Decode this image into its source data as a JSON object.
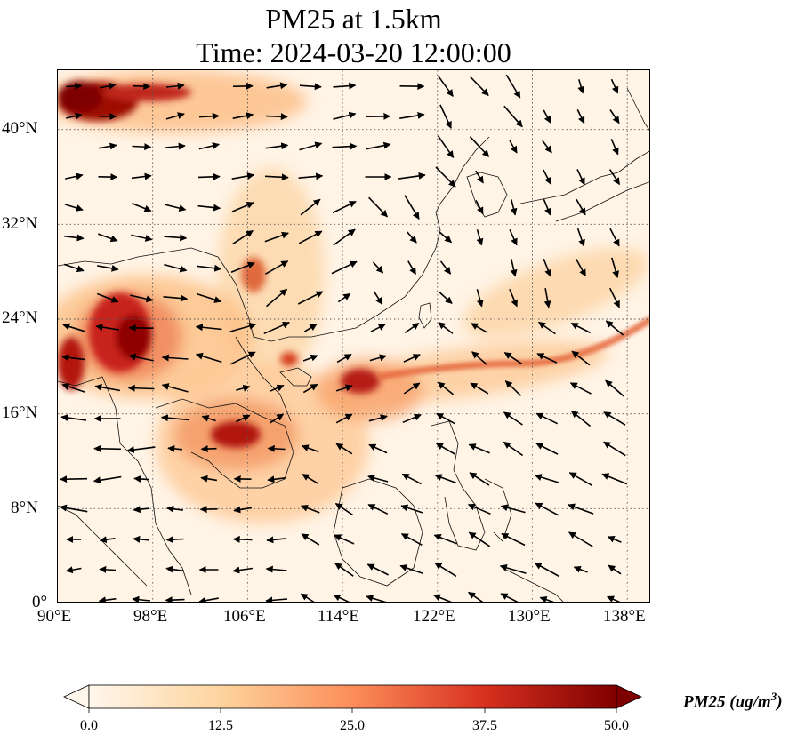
{
  "title": {
    "line1": "PM25 at 1.5km",
    "line2": "Time: 2024-03-20 12:00:00"
  },
  "map": {
    "projection": "PlateCarree",
    "extent": {
      "lon_min": 90,
      "lon_max": 140,
      "lat_min": 0,
      "lat_max": 45
    },
    "gridlines": "dotted"
  },
  "axes": {
    "longitude_ticks": [
      "90°E",
      "98°E",
      "106°E",
      "114°E",
      "122°E",
      "130°E",
      "138°E"
    ],
    "latitude_ticks": [
      "0°",
      "8°N",
      "16°N",
      "24°N",
      "32°N",
      "40°N"
    ]
  },
  "colorbar": {
    "label": "PM25 (ug/m",
    "label_superscript": "3",
    "label_suffix": ")",
    "ticks": [
      "0.0",
      "12.5",
      "25.0",
      "37.5",
      "50.0"
    ],
    "min": 0,
    "max": 50,
    "colormap": "OrRd",
    "colors": [
      "#fff7ec",
      "#fdd49e",
      "#fc8d59",
      "#d7301f",
      "#7f0000"
    ],
    "extend": "both"
  },
  "overlay": {
    "wind_vectors": "black arrows"
  }
}
